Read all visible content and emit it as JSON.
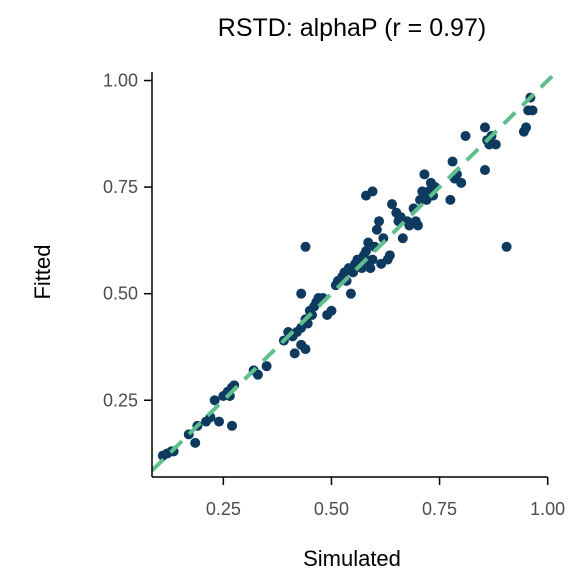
{
  "chart_data": {
    "type": "scatter",
    "title": "RSTD: alphaP (r = 0.97)",
    "xlabel": "Simulated",
    "ylabel": "Fitted",
    "xlim": [
      0.085,
      1.01
    ],
    "ylim": [
      0.07,
      1.02
    ],
    "xticks": [
      0.25,
      0.5,
      0.75,
      1.0
    ],
    "xtick_labels": [
      "0.25",
      "0.50",
      "0.75",
      "1.00"
    ],
    "yticks": [
      0.25,
      0.5,
      0.75,
      1.0
    ],
    "ytick_labels": [
      "0.25",
      "0.50",
      "0.75",
      "1.00"
    ],
    "grid": false,
    "reference_line": {
      "slope": 1,
      "intercept": 0,
      "style": "dashed",
      "color": "#5fbf8c"
    },
    "point_color": "#0d3a5e",
    "points": [
      [
        0.11,
        0.12
      ],
      [
        0.12,
        0.125
      ],
      [
        0.13,
        0.13
      ],
      [
        0.135,
        0.13
      ],
      [
        0.17,
        0.17
      ],
      [
        0.185,
        0.15
      ],
      [
        0.19,
        0.19
      ],
      [
        0.21,
        0.2
      ],
      [
        0.22,
        0.21
      ],
      [
        0.24,
        0.2
      ],
      [
        0.23,
        0.25
      ],
      [
        0.25,
        0.26
      ],
      [
        0.26,
        0.27
      ],
      [
        0.265,
        0.26
      ],
      [
        0.27,
        0.28
      ],
      [
        0.275,
        0.285
      ],
      [
        0.27,
        0.19
      ],
      [
        0.32,
        0.32
      ],
      [
        0.33,
        0.31
      ],
      [
        0.35,
        0.33
      ],
      [
        0.39,
        0.39
      ],
      [
        0.4,
        0.41
      ],
      [
        0.41,
        0.4
      ],
      [
        0.415,
        0.36
      ],
      [
        0.42,
        0.41
      ],
      [
        0.43,
        0.38
      ],
      [
        0.43,
        0.42
      ],
      [
        0.44,
        0.37
      ],
      [
        0.44,
        0.44
      ],
      [
        0.445,
        0.43
      ],
      [
        0.45,
        0.46
      ],
      [
        0.455,
        0.45
      ],
      [
        0.46,
        0.47
      ],
      [
        0.465,
        0.48
      ],
      [
        0.47,
        0.49
      ],
      [
        0.48,
        0.49
      ],
      [
        0.43,
        0.5
      ],
      [
        0.44,
        0.61
      ],
      [
        0.49,
        0.45
      ],
      [
        0.5,
        0.46
      ],
      [
        0.51,
        0.52
      ],
      [
        0.515,
        0.53
      ],
      [
        0.525,
        0.54
      ],
      [
        0.53,
        0.55
      ],
      [
        0.535,
        0.53
      ],
      [
        0.54,
        0.56
      ],
      [
        0.545,
        0.5
      ],
      [
        0.55,
        0.55
      ],
      [
        0.555,
        0.57
      ],
      [
        0.56,
        0.58
      ],
      [
        0.565,
        0.57
      ],
      [
        0.57,
        0.56
      ],
      [
        0.575,
        0.59
      ],
      [
        0.58,
        0.6
      ],
      [
        0.585,
        0.57
      ],
      [
        0.585,
        0.62
      ],
      [
        0.59,
        0.56
      ],
      [
        0.595,
        0.58
      ],
      [
        0.6,
        0.61
      ],
      [
        0.605,
        0.65
      ],
      [
        0.61,
        0.67
      ],
      [
        0.615,
        0.57
      ],
      [
        0.62,
        0.63
      ],
      [
        0.63,
        0.58
      ],
      [
        0.635,
        0.59
      ],
      [
        0.64,
        0.71
      ],
      [
        0.65,
        0.69
      ],
      [
        0.655,
        0.67
      ],
      [
        0.66,
        0.68
      ],
      [
        0.665,
        0.63
      ],
      [
        0.675,
        0.67
      ],
      [
        0.68,
        0.66
      ],
      [
        0.69,
        0.7
      ],
      [
        0.695,
        0.67
      ],
      [
        0.7,
        0.66
      ],
      [
        0.705,
        0.72
      ],
      [
        0.71,
        0.74
      ],
      [
        0.715,
        0.78
      ],
      [
        0.72,
        0.72
      ],
      [
        0.725,
        0.74
      ],
      [
        0.73,
        0.76
      ],
      [
        0.735,
        0.73
      ],
      [
        0.74,
        0.75
      ],
      [
        0.58,
        0.73
      ],
      [
        0.595,
        0.74
      ],
      [
        0.775,
        0.72
      ],
      [
        0.78,
        0.81
      ],
      [
        0.785,
        0.77
      ],
      [
        0.79,
        0.78
      ],
      [
        0.8,
        0.76
      ],
      [
        0.81,
        0.87
      ],
      [
        0.855,
        0.89
      ],
      [
        0.86,
        0.86
      ],
      [
        0.865,
        0.85
      ],
      [
        0.87,
        0.87
      ],
      [
        0.88,
        0.85
      ],
      [
        0.855,
        0.79
      ],
      [
        0.905,
        0.61
      ],
      [
        0.945,
        0.88
      ],
      [
        0.95,
        0.89
      ],
      [
        0.955,
        0.93
      ],
      [
        0.96,
        0.96
      ],
      [
        0.965,
        0.93
      ]
    ]
  }
}
